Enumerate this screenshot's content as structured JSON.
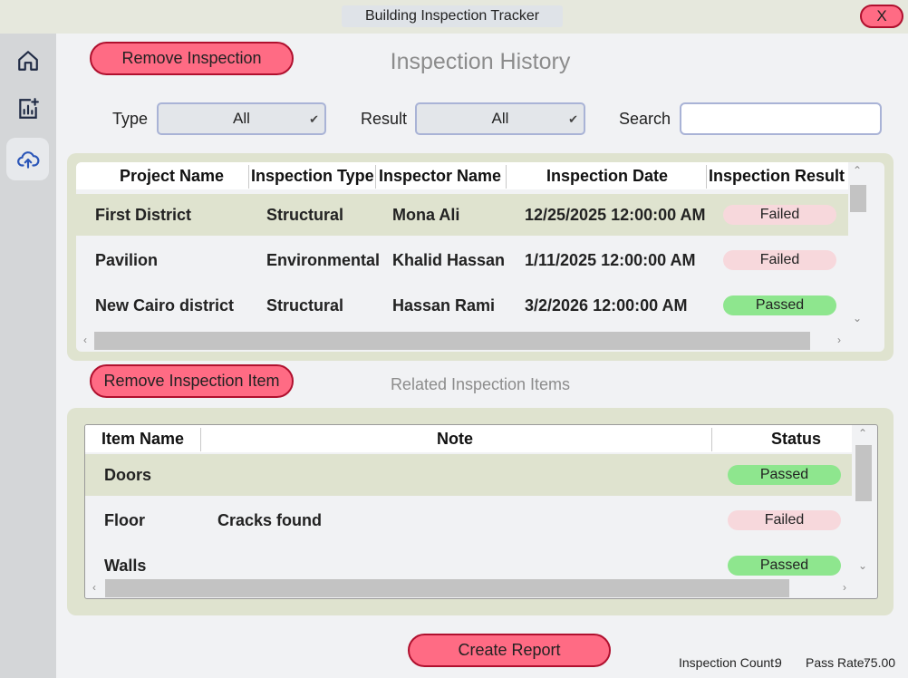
{
  "window": {
    "title": "Building Inspection Tracker",
    "close_label": "X"
  },
  "sidebar": {
    "items": [
      {
        "icon": "home-icon"
      },
      {
        "icon": "report-add-icon"
      },
      {
        "icon": "cloud-upload-icon",
        "active": true
      }
    ]
  },
  "inspections": {
    "remove_label": "Remove Inspection",
    "heading": "Inspection History",
    "filters": {
      "type_label": "Type",
      "type_value": "All",
      "result_label": "Result",
      "result_value": "All",
      "search_label": "Search",
      "search_value": ""
    },
    "columns": [
      "Project Name",
      "Inspection Type",
      "Inspector Name",
      "Inspection Date",
      "Inspection Result"
    ],
    "rows": [
      {
        "project": "First District",
        "type": "Structural",
        "inspector": "Mona Ali",
        "date": "12/25/2025 12:00:00 AM",
        "result": "Failed"
      },
      {
        "project": "Pavilion",
        "type": "Environmental",
        "inspector": "Khalid Hassan",
        "date": "1/11/2025 12:00:00 AM",
        "result": "Failed"
      },
      {
        "project": "New Cairo district",
        "type": "Structural",
        "inspector": "Hassan Rami",
        "date": "3/2/2026 12:00:00 AM",
        "result": "Passed"
      }
    ]
  },
  "items": {
    "remove_label": "Remove Inspection Item",
    "heading": "Related Inspection Items",
    "columns": [
      "Item Name",
      "Note",
      "Status"
    ],
    "rows": [
      {
        "name": "Doors",
        "note": "",
        "status": "Passed"
      },
      {
        "name": "Floor",
        "note": "Cracks found",
        "status": "Failed"
      },
      {
        "name": "Walls",
        "note": "",
        "status": "Passed"
      }
    ]
  },
  "footer": {
    "create_report_label": "Create Report",
    "count_label": "Inspection Count:",
    "count_value": "9",
    "pass_rate_label": "Pass Rate:",
    "pass_rate_value": "75.00"
  },
  "colors": {
    "accent_button": "#ff6b84",
    "button_border": "#b0102e",
    "panel": "#dfe3cf",
    "passed": "#8ee68e",
    "failed": "#f7d8dc"
  }
}
